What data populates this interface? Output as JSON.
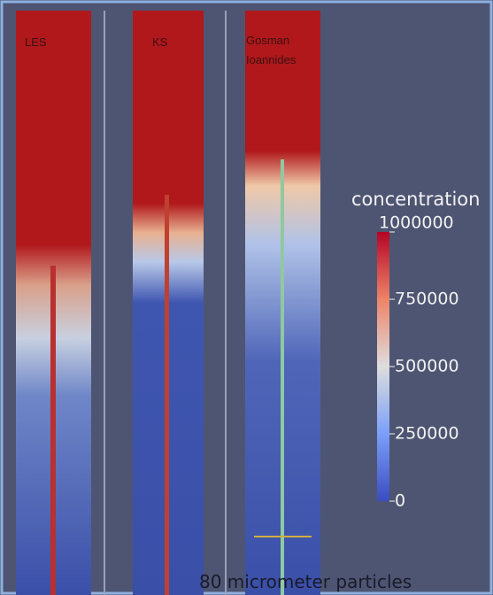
{
  "panels": [
    {
      "label": "LES"
    },
    {
      "label": "KS"
    },
    {
      "label": [
        "Gosman",
        "Ioannides"
      ]
    }
  ],
  "colorbar": {
    "title": "concentration",
    "ticks": [
      0,
      250000,
      500000,
      750000,
      1000000
    ]
  },
  "caption": "80 micrometer particles"
}
